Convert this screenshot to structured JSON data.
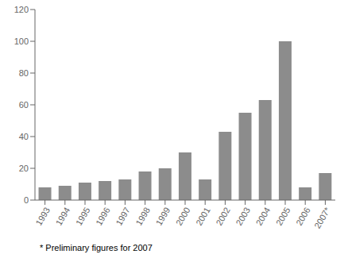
{
  "chart_data": {
    "type": "bar",
    "categories": [
      "1993",
      "1994",
      "1995",
      "1996",
      "1997",
      "1998",
      "1999",
      "2000",
      "2001",
      "2002",
      "2003",
      "2004",
      "2005",
      "2006",
      "2007*"
    ],
    "values": [
      8,
      9,
      11,
      12,
      13,
      18,
      20,
      30,
      13,
      43,
      55,
      63,
      100,
      8,
      17
    ],
    "color": "#8c8c8c",
    "ylim": [
      0,
      120
    ],
    "yticks": [
      0,
      20,
      40,
      60,
      80,
      100,
      120
    ],
    "grid": false,
    "annotations": [
      "* Preliminary figures for 2007"
    ]
  }
}
